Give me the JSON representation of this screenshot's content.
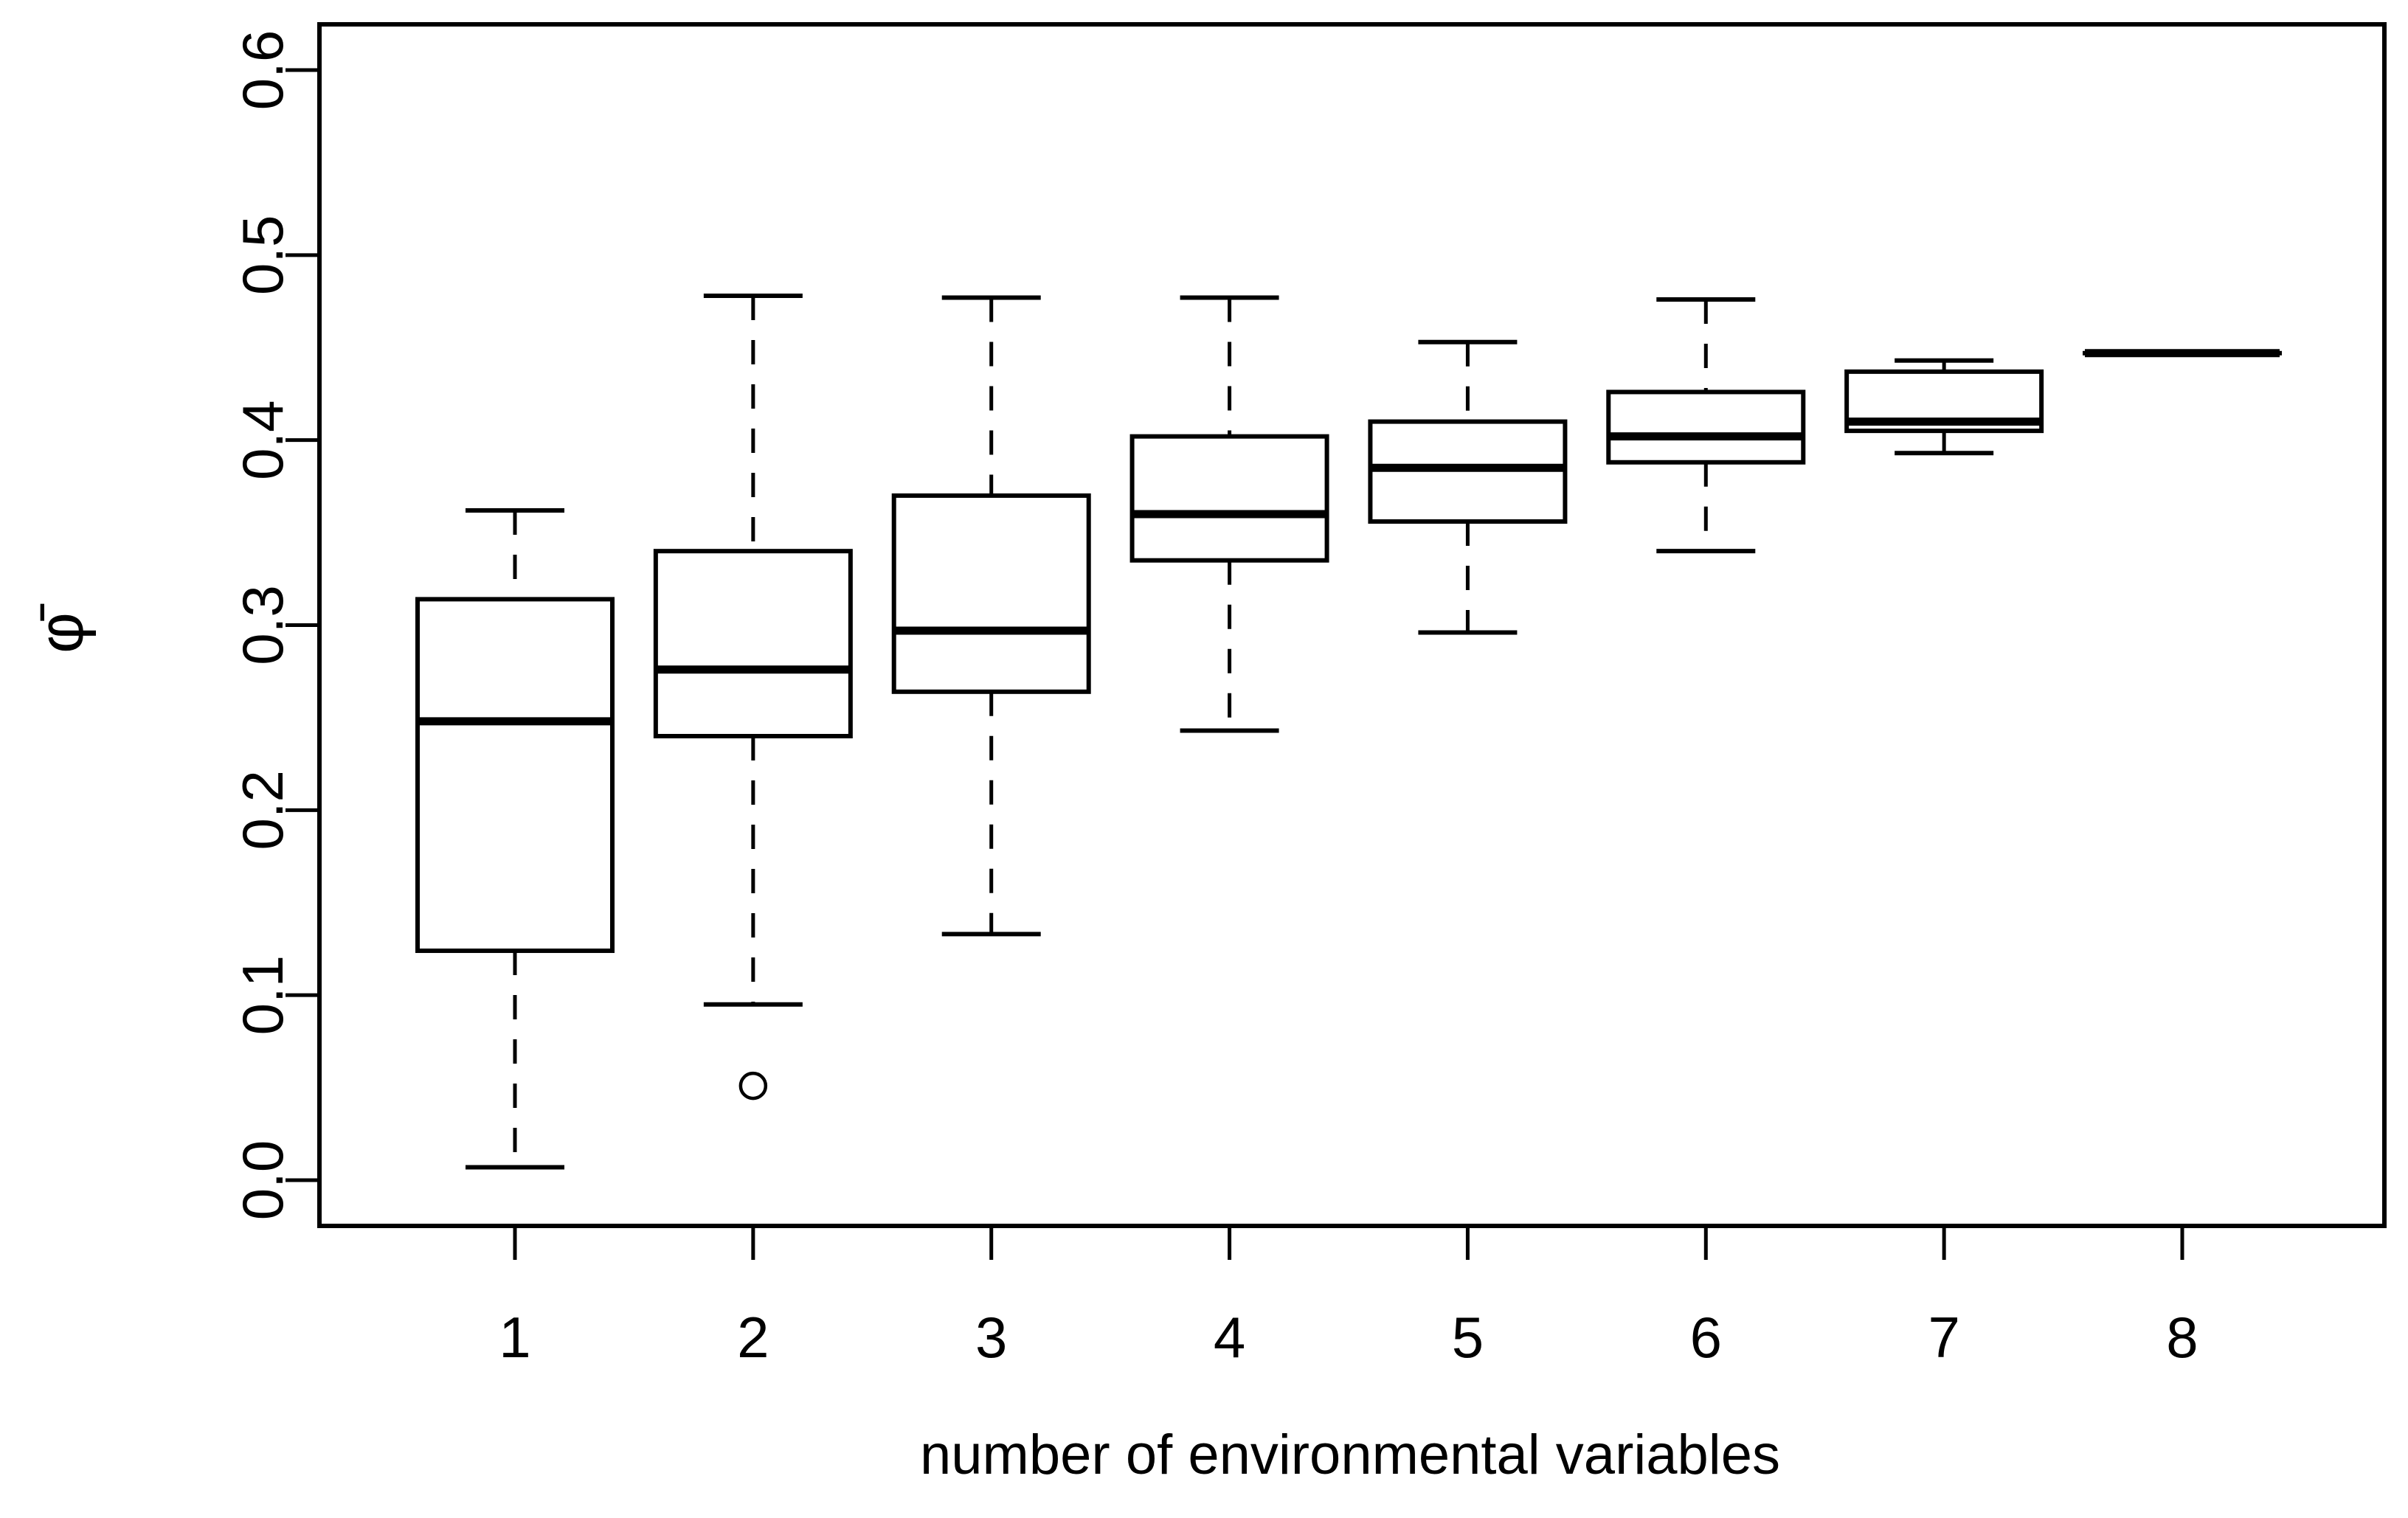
{
  "chart_data": {
    "type": "boxplot",
    "title": "",
    "xlabel": "number of environmental variables",
    "ylabel": "φ̄",
    "categories": [
      1,
      2,
      3,
      4,
      5,
      6,
      7,
      8
    ],
    "x_tick_labels": [
      "1",
      "2",
      "3",
      "4",
      "5",
      "6",
      "7",
      "8"
    ],
    "y_ticks": [
      0.0,
      0.1,
      0.2,
      0.3,
      0.4,
      0.5,
      0.6
    ],
    "y_tick_labels": [
      "0.0",
      "0.1",
      "0.2",
      "0.3",
      "0.4",
      "0.5",
      "0.6"
    ],
    "ylim": [
      0.0,
      0.6
    ],
    "grid": false,
    "legend": null,
    "boxes": [
      {
        "x": 1,
        "low": 0.007,
        "q1": 0.124,
        "median": 0.248,
        "q3": 0.314,
        "high": 0.362,
        "outliers": []
      },
      {
        "x": 2,
        "low": 0.095,
        "q1": 0.24,
        "median": 0.276,
        "q3": 0.34,
        "high": 0.478,
        "outliers": [
          0.051
        ]
      },
      {
        "x": 3,
        "low": 0.133,
        "q1": 0.264,
        "median": 0.297,
        "q3": 0.37,
        "high": 0.477,
        "outliers": []
      },
      {
        "x": 4,
        "low": 0.243,
        "q1": 0.335,
        "median": 0.36,
        "q3": 0.402,
        "high": 0.477,
        "outliers": []
      },
      {
        "x": 5,
        "low": 0.296,
        "q1": 0.356,
        "median": 0.385,
        "q3": 0.41,
        "high": 0.453,
        "outliers": []
      },
      {
        "x": 6,
        "low": 0.34,
        "q1": 0.388,
        "median": 0.402,
        "q3": 0.426,
        "high": 0.476,
        "outliers": []
      },
      {
        "x": 7,
        "low": 0.393,
        "q1": 0.405,
        "median": 0.41,
        "q3": 0.437,
        "high": 0.443,
        "outliers": []
      },
      {
        "x": 8,
        "low": 0.447,
        "q1": 0.447,
        "median": 0.447,
        "q3": 0.447,
        "high": 0.447,
        "outliers": []
      }
    ],
    "colors": {
      "line": "#000000",
      "box_fill": "#ffffff",
      "background": "#ffffff"
    }
  }
}
